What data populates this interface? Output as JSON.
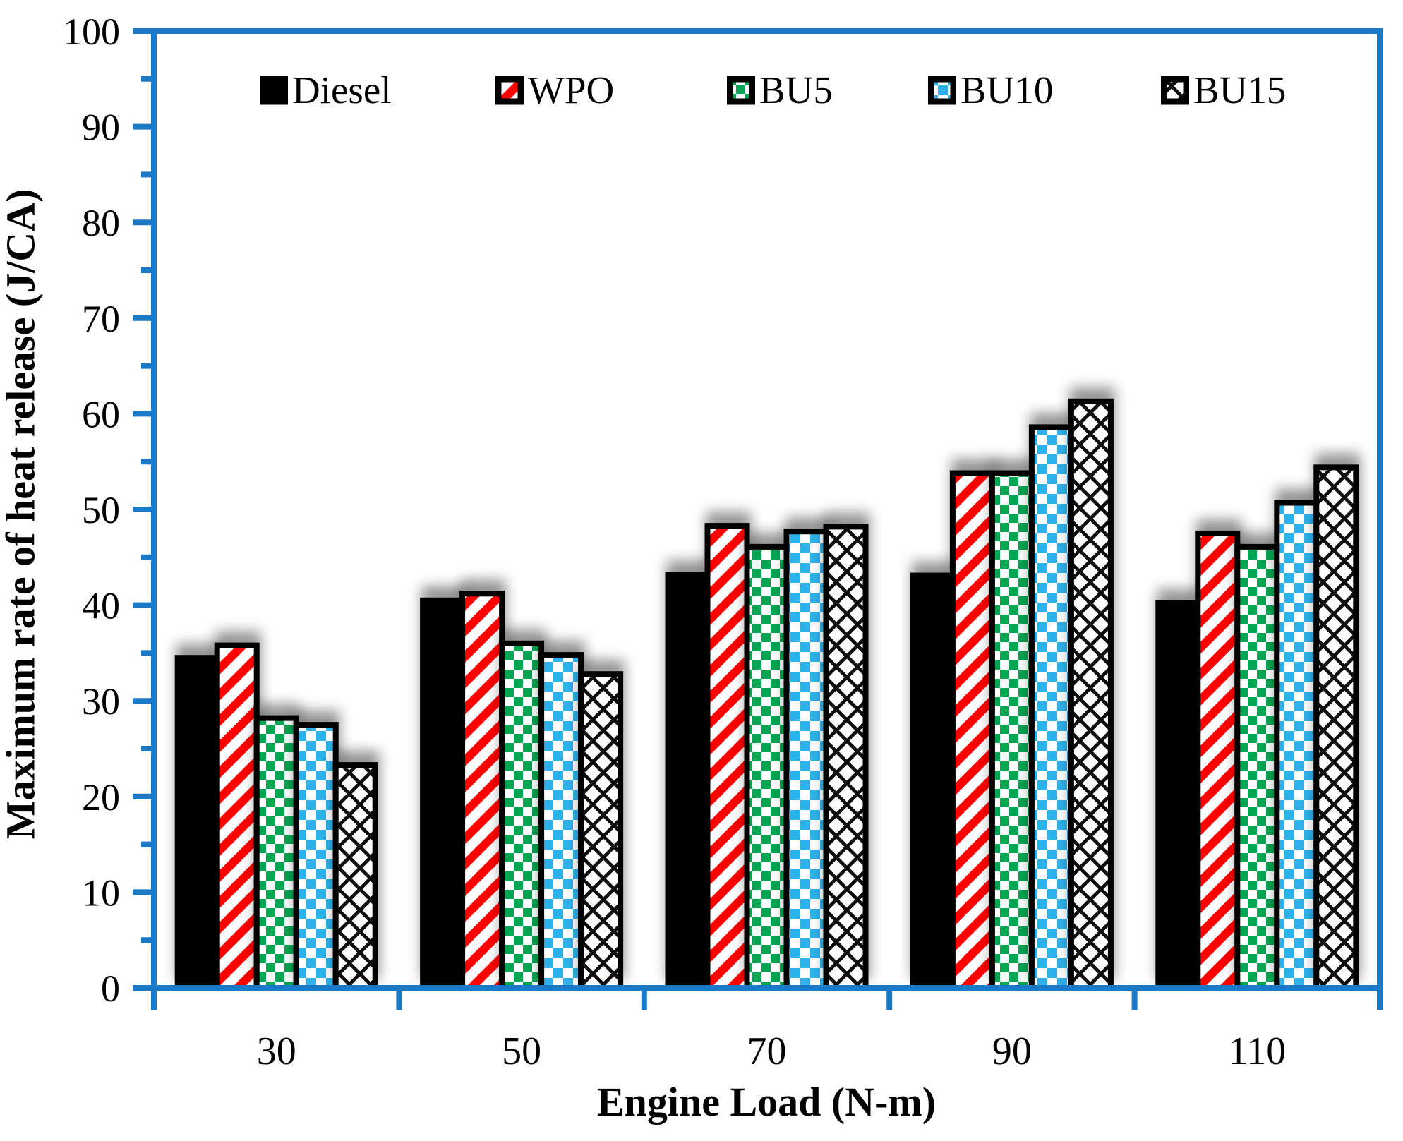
{
  "chart_data": {
    "type": "bar",
    "title": "",
    "xlabel": "Engine Load (N-m)",
    "ylabel": "Maximum rate of heat release (J/CA)",
    "categories": [
      "30",
      "50",
      "70",
      "90",
      "110"
    ],
    "series": [
      {
        "name": "Diesel",
        "pattern": "solid-black",
        "values": [
          34.5,
          40.5,
          43.2,
          43.1,
          40.2
        ]
      },
      {
        "name": "WPO",
        "pattern": "red-diagonal-stripes",
        "values": [
          35.8,
          41.2,
          48.3,
          53.8,
          47.5
        ]
      },
      {
        "name": "BU5",
        "pattern": "green-checkerboard",
        "values": [
          28.2,
          36.0,
          46.1,
          53.8,
          46.1
        ]
      },
      {
        "name": "BU10",
        "pattern": "blue-checkerboard",
        "values": [
          27.5,
          34.8,
          47.7,
          58.6,
          50.7
        ]
      },
      {
        "name": "BU15",
        "pattern": "black-diamond-crosshatch",
        "values": [
          23.3,
          32.8,
          48.2,
          61.3,
          54.4
        ]
      }
    ],
    "ylim": [
      0,
      100
    ],
    "ytick_major_step": 10,
    "ytick_minor_step": 5,
    "y_tick_labels": [
      "0",
      "10",
      "20",
      "30",
      "40",
      "50",
      "60",
      "70",
      "80",
      "90",
      "100"
    ],
    "grid": false,
    "legend_position": "top-inside",
    "colors": {
      "axis_frame": "#1b79c5",
      "bar_border": "#000000",
      "diesel_fill": "#000000",
      "wpo_stripe_red": "#fe0000",
      "bu5_green": "#00a651",
      "bu10_blue": "#2fb2ec",
      "bu15_line_black": "#0d0d0d",
      "pattern_background": "#ffffff",
      "text": "#000000"
    }
  }
}
